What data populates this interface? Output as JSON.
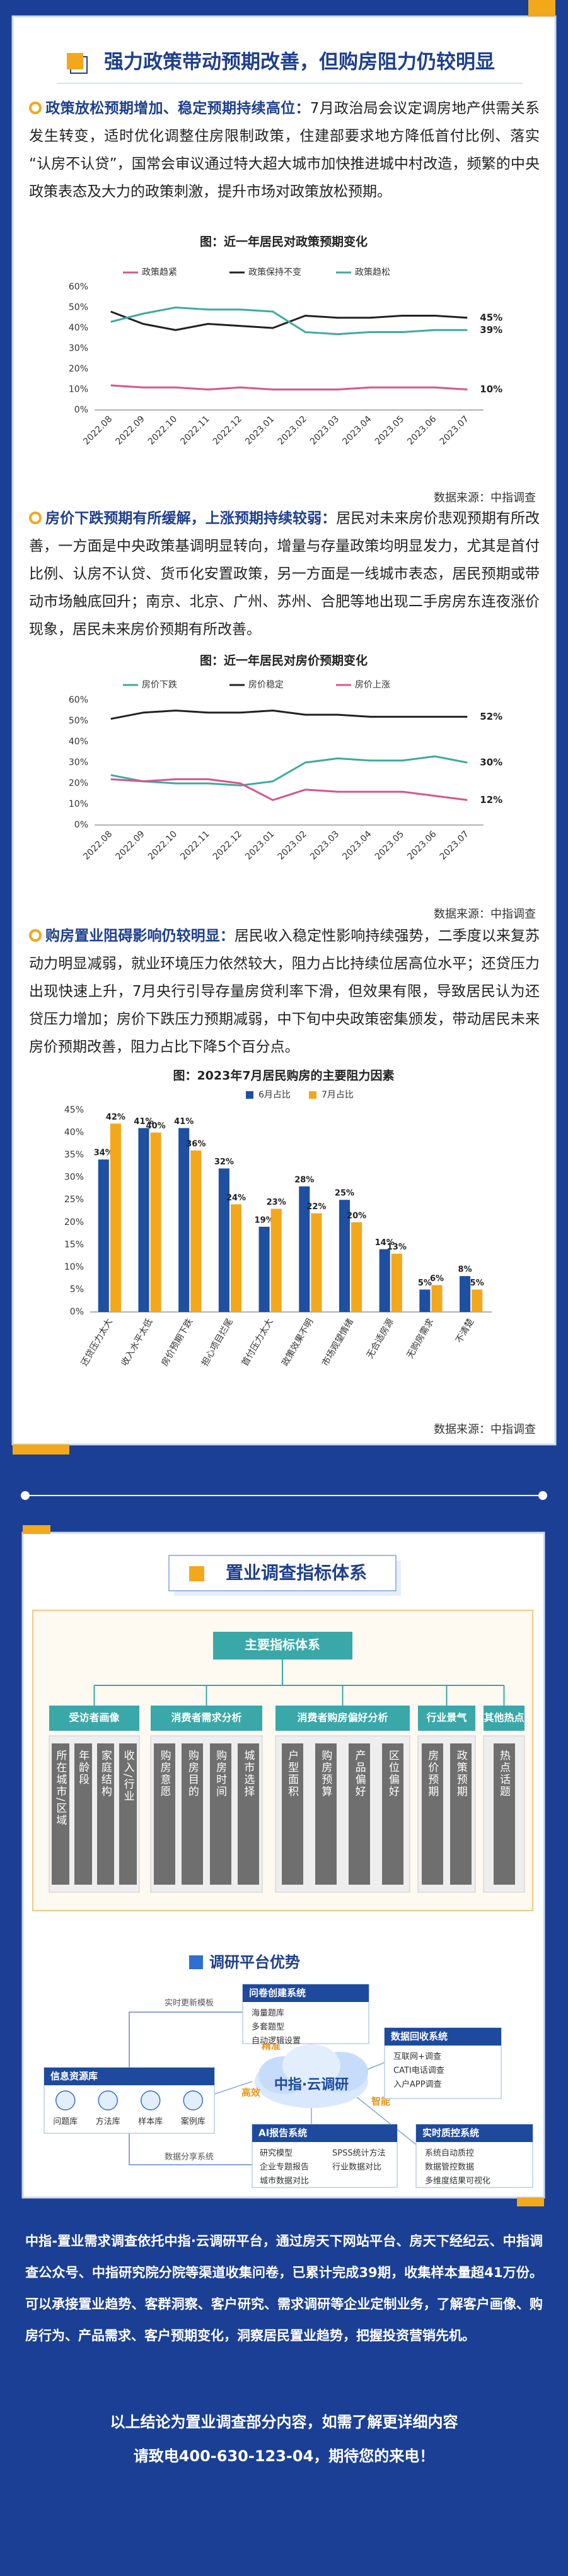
{
  "header": {
    "title": "强力政策带动预期改善，但购房阻力仍较明显"
  },
  "paragraphs": [
    {
      "lead": "政策放松预期增加、稳定预期持续高位：",
      "text": "7月政治局会议定调房地产供需关系发生转变，适时优化调整住房限制政策，住建部要求地方降低首付比例、落实“认房不认贷”，国常会审议通过特大超大城市加快推进城中村改造，频繁的中央政策表态及大力的政策刺激，提升市场对政策放松预期。"
    },
    {
      "lead": "房价下跌预期有所缓解，上涨预期持续较弱：",
      "text": "居民对未来房价悲观预期有所改善，一方面是中央政策基调明显转向，增量与存量政策均明显发力，尤其是首付比例、认房不认贷、货币化安置政策，另一方面是一线城市表态，居民预期或带动市场触底回升；南京、北京、广州、苏州、合肥等地出现二手房房东连夜涨价现象，居民未来房价预期有所改善。"
    },
    {
      "lead": "购房置业阻碍影响仍较明显：",
      "text": "居民收入稳定性影响持续强势，二季度以来复苏动力明显减弱，就业环境压力依然较大，阻力占比持续位居高位水平；还贷压力出现快速上升，7月央行引导存量房贷利率下滑，但效果有限，导致居民认为还贷压力增加；房价下跌压力预期减弱，中下旬中央政策密集颁发，带动居民未来房价预期改善，阻力占比下降5个百分点。"
    }
  ],
  "chart_data": [
    {
      "type": "line",
      "title": "图：近一年居民对政策预期变化",
      "categories": [
        "2022.08",
        "2022.09",
        "2022.10",
        "2022.11",
        "2022.12",
        "2023.01",
        "2023.02",
        "2023.03",
        "2023.04",
        "2023.05",
        "2023.06",
        "2023.07"
      ],
      "series": [
        {
          "name": "政策趋紧",
          "color": "#d6558c",
          "values": [
            12,
            11,
            11,
            10,
            11,
            10,
            10,
            10,
            11,
            11,
            11,
            10
          ],
          "value_labels": [
            null,
            null,
            null,
            null,
            null,
            null,
            null,
            null,
            null,
            null,
            null,
            "10%"
          ]
        },
        {
          "name": "政策保持不变",
          "color": "#222222",
          "values": [
            48,
            42,
            39,
            42,
            41,
            40,
            46,
            45,
            45,
            46,
            46,
            45
          ],
          "value_labels": [
            null,
            null,
            null,
            null,
            null,
            null,
            null,
            null,
            null,
            null,
            null,
            "45%"
          ]
        },
        {
          "name": "政策趋松",
          "color": "#3daaa4",
          "values": [
            43,
            47,
            50,
            49,
            49,
            48,
            38,
            37,
            38,
            38,
            39,
            39
          ],
          "value_labels": [
            null,
            null,
            null,
            null,
            null,
            null,
            null,
            null,
            null,
            null,
            null,
            "39%"
          ]
        }
      ],
      "ylim": [
        0,
        60
      ],
      "yticks": [
        {
          "value": 0,
          "label": "0%"
        },
        {
          "value": 10,
          "label": "10%"
        },
        {
          "value": 20,
          "label": "20%"
        },
        {
          "value": 30,
          "label": "30%"
        },
        {
          "value": 40,
          "label": "40%"
        },
        {
          "value": 50,
          "label": "50%"
        },
        {
          "value": 60,
          "label": "60%"
        }
      ],
      "grid": false,
      "legend": "top",
      "source": "数据来源：中指调查"
    },
    {
      "type": "line",
      "title": "图：近一年居民对房价预期变化",
      "categories": [
        "2022.08",
        "2022.09",
        "2022.10",
        "2022.11",
        "2022.12",
        "2023.01",
        "2023.02",
        "2023.03",
        "2023.04",
        "2023.05",
        "2023.06",
        "2023.07"
      ],
      "series": [
        {
          "name": "房价下跌",
          "color": "#3daaa4",
          "values": [
            24,
            21,
            20,
            20,
            19,
            21,
            30,
            32,
            31,
            31,
            33,
            30
          ],
          "value_labels": [
            null,
            null,
            null,
            null,
            null,
            null,
            null,
            null,
            null,
            null,
            null,
            "30%"
          ]
        },
        {
          "name": "房价稳定",
          "color": "#222222",
          "values": [
            51,
            54,
            55,
            54,
            54,
            55,
            53,
            53,
            52,
            52,
            52,
            52
          ],
          "value_labels": [
            null,
            null,
            null,
            null,
            null,
            null,
            null,
            null,
            null,
            null,
            null,
            "52%"
          ]
        },
        {
          "name": "房价上涨",
          "color": "#d6558c",
          "values": [
            22,
            21,
            22,
            22,
            20,
            12,
            17,
            16,
            16,
            16,
            14,
            12
          ],
          "value_labels": [
            null,
            null,
            null,
            null,
            null,
            null,
            null,
            null,
            null,
            null,
            null,
            "12%"
          ]
        }
      ],
      "ylim": [
        0,
        60
      ],
      "yticks": [
        {
          "value": 0,
          "label": "0%"
        },
        {
          "value": 10,
          "label": "10%"
        },
        {
          "value": 20,
          "label": "20%"
        },
        {
          "value": 30,
          "label": "30%"
        },
        {
          "value": 40,
          "label": "40%"
        },
        {
          "value": 50,
          "label": "50%"
        },
        {
          "value": 60,
          "label": "60%"
        }
      ],
      "grid": false,
      "legend": "top",
      "source": "数据来源：中指调查"
    },
    {
      "type": "bar",
      "title": "图：2023年7月居民购房的主要阻力因素",
      "categories": [
        "还贷压力太大",
        "收入水平太低",
        "房价预期下跌",
        "担心项目烂尾",
        "首付压力太大",
        "政策效果不明",
        "市场观望情绪",
        "无合适房源",
        "无购房需求",
        "不清楚"
      ],
      "series": [
        {
          "name": "6月占比",
          "color": "#1f4fa0",
          "values": [
            34,
            41,
            41,
            32,
            19,
            28,
            25,
            14,
            5,
            8
          ],
          "value_labels": [
            "34%",
            "41%",
            "41%",
            "32%",
            "19%",
            "28%",
            "25%",
            "14%",
            "5%",
            "8%"
          ]
        },
        {
          "name": "7月占比",
          "color": "#f3a81b",
          "values": [
            42,
            40,
            36,
            24,
            23,
            22,
            20,
            13,
            6,
            5
          ],
          "value_labels": [
            "42%",
            "40%",
            "36%",
            "24%",
            "23%",
            "22%",
            "20%",
            "13%",
            "6%",
            "5%"
          ]
        }
      ],
      "ylim": [
        0,
        45
      ],
      "yticks": [
        {
          "value": 0,
          "label": "0%"
        },
        {
          "value": 5,
          "label": "5%"
        },
        {
          "value": 10,
          "label": "10%"
        },
        {
          "value": 15,
          "label": "15%"
        },
        {
          "value": 20,
          "label": "20%"
        },
        {
          "value": 25,
          "label": "25%"
        },
        {
          "value": 30,
          "label": "30%"
        },
        {
          "value": 35,
          "label": "35%"
        },
        {
          "value": 40,
          "label": "40%"
        },
        {
          "value": 45,
          "label": "45%"
        }
      ],
      "grid": false,
      "legend": "top",
      "source": "数据来源：中指调查"
    }
  ],
  "system": {
    "title": "置业调查指标体系",
    "root": "主要指标体系",
    "groups": [
      {
        "label": "受访者画像",
        "items": [
          "所在城市/区域",
          "年龄段",
          "家庭结构",
          "收入/行业"
        ]
      },
      {
        "label": "消费者需求分析",
        "items": [
          "购房意愿",
          "购房目的",
          "购房时间",
          "城市选择"
        ]
      },
      {
        "label": "消费者购房偏好分析",
        "items": [
          "户型面积",
          "购房预算",
          "产品偏好",
          "区位偏好"
        ]
      },
      {
        "label": "行业景气",
        "items": [
          "房价预期",
          "政策预期"
        ]
      },
      {
        "label": "其他热点",
        "items": [
          "热点话题"
        ]
      }
    ]
  },
  "platform": {
    "title": "调研平台优势",
    "center": "中指·云调研",
    "features": [
      "精准",
      "经济",
      "高效",
      "智能"
    ],
    "flows": [
      "实时更新模板",
      "数据分享系统"
    ],
    "modules": [
      {
        "title": "问卷创建系统",
        "items": [
          "海量题库",
          "多套题型",
          "自动逻辑设置"
        ]
      },
      {
        "title": "数据回收系统",
        "items": [
          "互联网+调查",
          "CATI电话调查",
          "入户APP调查"
        ]
      },
      {
        "title": "信息资源库",
        "items": [
          "问题库",
          "方法库",
          "样本库",
          "案例库"
        ]
      },
      {
        "title": "实时质控系统",
        "items": [
          "系统自动质控",
          "数据管控数据",
          "多维度结果可视化"
        ]
      },
      {
        "title": "AI报告系统",
        "items": [
          "研究模型",
          "SPSS统计方法",
          "企业专题报告",
          "行业数据对比",
          "城市数据对比"
        ]
      }
    ]
  },
  "footer": {
    "text": "中指-置业需求调查依托中指·云调研平台，通过房天下网站平台、房天下经纪云、中指调查公众号、中指研究院分院等渠道收集问卷，已累计完成39期，收集样本量超41万份。可以承接置业趋势、客群洞察、客户研究、需求调研等企业定制业务，了解客户画像、购房行为、产品需求、客户预期变化，洞察居民置业趋势，把握投资营销先机。",
    "lines": [
      "以上结论为置业调查部分内容，如需了解更详细内容",
      "请致电400-630-123-04，期待您的来电！"
    ]
  }
}
